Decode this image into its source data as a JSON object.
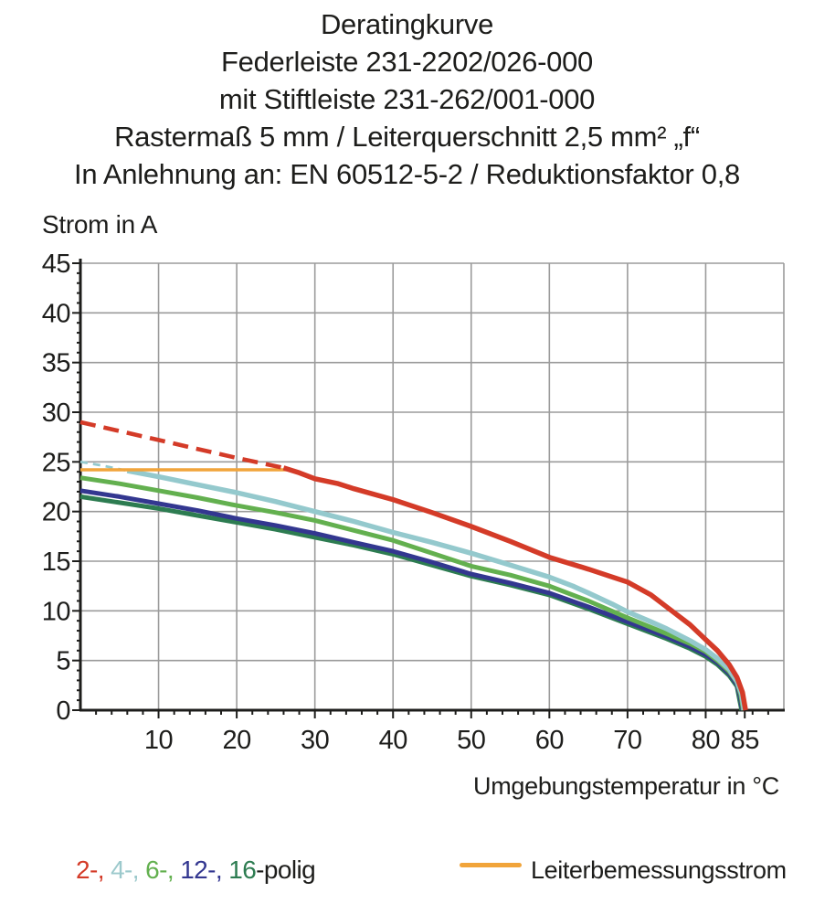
{
  "title": {
    "lines": [
      "Deratingkurve",
      "Federleiste 231-2202/026-000",
      "mit Stiftleiste 231-262/001-000",
      "Rastermaß 5 mm / Leiterquerschnitt 2,5 mm² „f“",
      "In Anlehnung an: EN 60512-5-2 / Reduktionsfaktor 0,8"
    ]
  },
  "chart_data": {
    "type": "line",
    "title": "Deratingkurve",
    "xlabel": "Umgebungstemperatur in °C",
    "ylabel": "Strom in A",
    "xlim": [
      0,
      90
    ],
    "ylim": [
      0,
      45
    ],
    "grid": true,
    "legend_position": "bottom",
    "grid_color": "#9b9b9b",
    "axis_color": "#1d1d1b",
    "x_tick_labels": [
      10,
      20,
      30,
      40,
      50,
      60,
      70,
      80,
      85
    ],
    "x_gridlines": [
      10,
      20,
      30,
      40,
      50,
      60,
      70,
      80
    ],
    "x_minor_tick_step": 2,
    "y_tick_labels": [
      0,
      5,
      10,
      15,
      20,
      25,
      30,
      35,
      40,
      45
    ],
    "y_gridlines": [
      5,
      10,
      15,
      20,
      25,
      30,
      35,
      40,
      45
    ],
    "y_minor_tick_step": 1,
    "series": [
      {
        "name": "16-polig",
        "color": "#2d7c51",
        "width": 5,
        "segments": [
          {
            "style": "solid",
            "points": [
              [
                0,
                21.5
              ],
              [
                5,
                20.9
              ],
              [
                10,
                20.3
              ],
              [
                15,
                19.6
              ],
              [
                20,
                18.9
              ],
              [
                25,
                18.2
              ],
              [
                30,
                17.4
              ],
              [
                35,
                16.6
              ],
              [
                40,
                15.7
              ],
              [
                45,
                14.6
              ],
              [
                50,
                13.5
              ],
              [
                55,
                12.6
              ],
              [
                60,
                11.6
              ],
              [
                65,
                10.2
              ],
              [
                70,
                8.7
              ],
              [
                75,
                7.2
              ],
              [
                78,
                6.2
              ],
              [
                80,
                5.4
              ],
              [
                81.5,
                4.6
              ],
              [
                83,
                3.5
              ],
              [
                84,
                2.4
              ],
              [
                84.3,
                1.2
              ],
              [
                84.6,
                0
              ]
            ]
          }
        ]
      },
      {
        "name": "12-polig",
        "color": "#333790",
        "width": 5,
        "segments": [
          {
            "style": "solid",
            "points": [
              [
                0,
                22.1
              ],
              [
                5,
                21.5
              ],
              [
                10,
                20.8
              ],
              [
                15,
                20.1
              ],
              [
                20,
                19.3
              ],
              [
                25,
                18.6
              ],
              [
                30,
                17.8
              ],
              [
                35,
                16.9
              ],
              [
                40,
                16.0
              ],
              [
                45,
                14.9
              ],
              [
                50,
                13.7
              ],
              [
                55,
                12.8
              ],
              [
                60,
                11.8
              ],
              [
                65,
                10.4
              ],
              [
                70,
                8.9
              ],
              [
                75,
                7.4
              ],
              [
                78,
                6.4
              ],
              [
                80,
                5.6
              ],
              [
                81.5,
                4.8
              ],
              [
                83,
                3.7
              ],
              [
                84,
                2.6
              ],
              [
                84.4,
                1.4
              ],
              [
                84.7,
                0
              ]
            ]
          }
        ]
      },
      {
        "name": "6-polig",
        "color": "#63b04f",
        "width": 5,
        "segments": [
          {
            "style": "solid",
            "points": [
              [
                0,
                23.4
              ],
              [
                5,
                22.8
              ],
              [
                10,
                22.1
              ],
              [
                15,
                21.4
              ],
              [
                20,
                20.6
              ],
              [
                25,
                19.9
              ],
              [
                30,
                19.1
              ],
              [
                35,
                18.1
              ],
              [
                40,
                17.1
              ],
              [
                45,
                15.8
              ],
              [
                50,
                14.5
              ],
              [
                55,
                13.6
              ],
              [
                60,
                12.5
              ],
              [
                65,
                11.0
              ],
              [
                70,
                9.3
              ],
              [
                75,
                7.7
              ],
              [
                78,
                6.7
              ],
              [
                80,
                5.9
              ],
              [
                81.5,
                5.0
              ],
              [
                83,
                3.9
              ],
              [
                84,
                2.8
              ],
              [
                84.5,
                1.5
              ],
              [
                84.8,
                0
              ]
            ]
          }
        ]
      },
      {
        "name": "4-polig",
        "color": "#94c9cd",
        "width": 5.5,
        "segments": [
          {
            "style": "dashed",
            "width": 2.8,
            "dash": "8 6",
            "points": [
              [
                0,
                25.0
              ],
              [
                3,
                24.6
              ],
              [
                6,
                24.1
              ]
            ]
          },
          {
            "style": "solid",
            "points": [
              [
                6,
                24.1
              ],
              [
                10,
                23.5
              ],
              [
                15,
                22.7
              ],
              [
                20,
                21.9
              ],
              [
                25,
                21.0
              ],
              [
                30,
                20.0
              ],
              [
                35,
                19.0
              ],
              [
                40,
                17.9
              ],
              [
                45,
                16.9
              ],
              [
                50,
                15.8
              ],
              [
                55,
                14.6
              ],
              [
                60,
                13.4
              ],
              [
                63,
                12.5
              ],
              [
                65,
                11.8
              ],
              [
                68,
                10.7
              ],
              [
                70,
                9.9
              ],
              [
                73,
                8.9
              ],
              [
                75,
                8.2
              ],
              [
                78,
                7.0
              ],
              [
                80,
                6.1
              ],
              [
                81.5,
                5.2
              ],
              [
                83,
                4.1
              ],
              [
                84,
                2.9
              ],
              [
                84.6,
                1.6
              ],
              [
                84.9,
                0
              ]
            ]
          }
        ]
      },
      {
        "name": "Leiterbemessungsstrom",
        "color": "#f1a43a",
        "width": 3.5,
        "segments": [
          {
            "style": "solid",
            "points": [
              [
                0,
                24.2
              ],
              [
                27,
                24.2
              ]
            ]
          }
        ]
      },
      {
        "name": "2-polig",
        "color": "#d43b28",
        "width": 5.5,
        "segments": [
          {
            "style": "dashed",
            "width": 4.6,
            "dash": "17 9",
            "points": [
              [
                0,
                29.0
              ],
              [
                5,
                28.1
              ],
              [
                10,
                27.2
              ],
              [
                15,
                26.3
              ],
              [
                20,
                25.4
              ],
              [
                23,
                24.9
              ],
              [
                26,
                24.4
              ]
            ]
          },
          {
            "style": "solid",
            "points": [
              [
                26,
                24.4
              ],
              [
                28,
                23.9
              ],
              [
                30,
                23.3
              ],
              [
                33,
                22.8
              ],
              [
                35,
                22.3
              ],
              [
                40,
                21.2
              ],
              [
                45,
                19.9
              ],
              [
                50,
                18.5
              ],
              [
                55,
                17.0
              ],
              [
                60,
                15.4
              ],
              [
                65,
                14.2
              ],
              [
                70,
                12.9
              ],
              [
                73,
                11.6
              ],
              [
                75,
                10.4
              ],
              [
                78,
                8.6
              ],
              [
                80,
                7.1
              ],
              [
                81.5,
                6.0
              ],
              [
                83,
                4.6
              ],
              [
                84,
                3.3
              ],
              [
                84.7,
                1.8
              ],
              [
                85.1,
                0
              ]
            ]
          }
        ]
      }
    ]
  },
  "legend": {
    "pole_parts": [
      {
        "text": "2-, ",
        "color": "#d43b28"
      },
      {
        "text": "4-, ",
        "color": "#9cc9cc"
      },
      {
        "text": "6-, ",
        "color": "#63b04f"
      },
      {
        "text": "12-, ",
        "color": "#333790"
      },
      {
        "text": "16",
        "color": "#2d7c51"
      },
      {
        "text": "-polig",
        "color": "#1d1d1b"
      }
    ],
    "rated_current_label": "Leiterbemessungsstrom",
    "rated_current_color": "#f1a43a"
  }
}
